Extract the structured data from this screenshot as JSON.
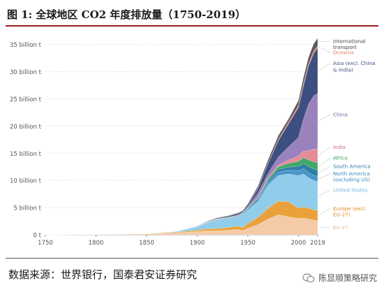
{
  "figure": {
    "title": "图 1:  全球地区 CO2 年度排放量（1750-2019）",
    "source": "数据来源：世界银行，国泰君安证券研究",
    "watermark": "陈显顺策略研究"
  },
  "chart_data": {
    "type": "area",
    "stacked": true,
    "x": [
      1750,
      1800,
      1850,
      1880,
      1900,
      1910,
      1920,
      1930,
      1940,
      1945,
      1950,
      1960,
      1970,
      1980,
      1990,
      2000,
      2005,
      2010,
      2015,
      2019
    ],
    "xticks": [
      1750,
      1800,
      1850,
      1900,
      1950,
      2000,
      2019
    ],
    "yticks": [
      0,
      5,
      10,
      15,
      20,
      25,
      30,
      35
    ],
    "ytick_labels": [
      "0 t",
      "5 billion t",
      "10 billion t",
      "15 billion t",
      "20 billion t",
      "25 billion t",
      "30 billion t",
      "35 billion t"
    ],
    "xlim": [
      1750,
      2019
    ],
    "ylim": [
      0,
      36.5
    ],
    "series": [
      {
        "name": "EU-27",
        "color": "#f5cba7",
        "values": [
          0.01,
          0.03,
          0.15,
          0.35,
          0.6,
          0.75,
          0.75,
          0.85,
          1.0,
          0.8,
          1.2,
          1.9,
          2.9,
          3.7,
          3.3,
          3.0,
          3.1,
          2.9,
          2.7,
          2.6
        ]
      },
      {
        "name": "Europe (excl. EU-27)",
        "color": "#e9a23b",
        "values": [
          0.0,
          0.01,
          0.05,
          0.12,
          0.25,
          0.35,
          0.4,
          0.5,
          0.6,
          0.55,
          0.9,
          1.3,
          2.0,
          2.5,
          2.8,
          1.9,
          2.0,
          2.0,
          1.9,
          1.9
        ]
      },
      {
        "name": "United States",
        "color": "#91cdea",
        "values": [
          0.0,
          0.0,
          0.02,
          0.15,
          0.65,
          1.15,
          1.6,
          1.6,
          1.7,
          2.4,
          2.5,
          2.9,
          4.3,
          4.7,
          5.1,
          6.0,
          6.1,
          5.6,
          5.4,
          5.3
        ]
      },
      {
        "name": "North America (excluding US)",
        "color": "#4a96c9",
        "values": [
          0.0,
          0.0,
          0.0,
          0.01,
          0.03,
          0.05,
          0.08,
          0.1,
          0.12,
          0.15,
          0.2,
          0.3,
          0.5,
          0.6,
          0.7,
          0.9,
          1.0,
          0.95,
          0.95,
          0.95
        ]
      },
      {
        "name": "South America",
        "color": "#2e7fa8",
        "values": [
          0.0,
          0.0,
          0.0,
          0.0,
          0.01,
          0.02,
          0.03,
          0.04,
          0.05,
          0.06,
          0.1,
          0.2,
          0.3,
          0.5,
          0.55,
          0.8,
          0.9,
          1.1,
          1.2,
          1.1
        ]
      },
      {
        "name": "Africa",
        "color": "#3fa86a",
        "values": [
          0.0,
          0.0,
          0.0,
          0.0,
          0.01,
          0.02,
          0.03,
          0.04,
          0.05,
          0.06,
          0.1,
          0.2,
          0.3,
          0.5,
          0.7,
          0.9,
          1.1,
          1.2,
          1.3,
          1.4
        ]
      },
      {
        "name": "India",
        "color": "#e58d97",
        "values": [
          0.0,
          0.0,
          0.0,
          0.0,
          0.01,
          0.02,
          0.03,
          0.04,
          0.05,
          0.05,
          0.06,
          0.1,
          0.2,
          0.3,
          0.6,
          1.0,
          1.2,
          1.7,
          2.3,
          2.6
        ]
      },
      {
        "name": "China",
        "color": "#9a83bd",
        "values": [
          0.0,
          0.0,
          0.0,
          0.0,
          0.01,
          0.02,
          0.03,
          0.04,
          0.05,
          0.06,
          0.1,
          0.8,
          0.8,
          1.5,
          2.4,
          3.4,
          5.9,
          8.6,
          9.8,
          10.2
        ]
      },
      {
        "name": "Asia (excl. China & India)",
        "color": "#3d4f80",
        "values": [
          0.0,
          0.0,
          0.0,
          0.01,
          0.05,
          0.08,
          0.15,
          0.2,
          0.3,
          0.2,
          0.3,
          0.8,
          1.8,
          3.0,
          4.2,
          5.5,
          6.1,
          7.0,
          7.8,
          8.3
        ]
      },
      {
        "name": "Oceania",
        "color": "#f0826a",
        "values": [
          0.0,
          0.0,
          0.0,
          0.0,
          0.0,
          0.01,
          0.01,
          0.01,
          0.02,
          0.02,
          0.03,
          0.05,
          0.1,
          0.2,
          0.3,
          0.4,
          0.45,
          0.45,
          0.45,
          0.45
        ]
      },
      {
        "name": "International transport",
        "color": "#5a5a5a",
        "values": [
          0.0,
          0.0,
          0.0,
          0.0,
          0.02,
          0.05,
          0.05,
          0.07,
          0.1,
          0.1,
          0.2,
          0.4,
          0.6,
          0.7,
          0.6,
          0.9,
          1.1,
          1.2,
          1.3,
          1.35
        ]
      }
    ],
    "legend_placement": "right, labels beside series ends",
    "label_colors": {
      "International transport": "#444444",
      "Oceania": "#e07a5f",
      "Asia (excl. China & India)": "#3d4f80",
      "China": "#7b62a8",
      "India": "#d9667a",
      "Africa": "#2e9e57",
      "South America": "#2e7fa8",
      "North America (excluding US)": "#3c88bf",
      "United States": "#6fb8dd",
      "Europe (excl. EU-27)": "#e08a1e",
      "EU-27": "#e8b48e"
    }
  }
}
